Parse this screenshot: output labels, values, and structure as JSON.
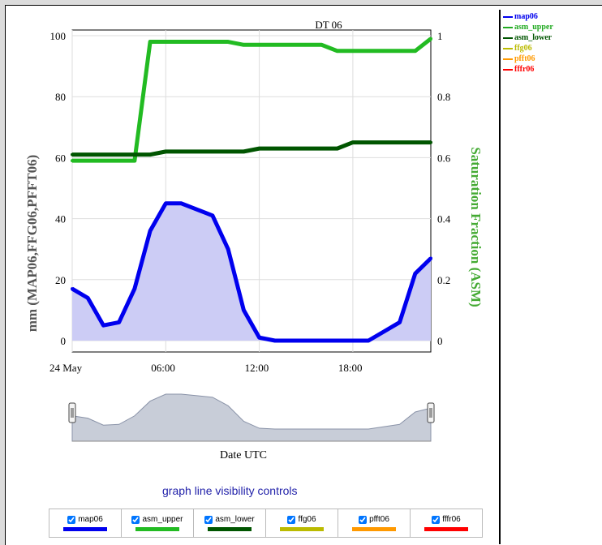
{
  "legend_items": [
    {
      "name": "map06",
      "color": "#0000ee"
    },
    {
      "name": "asm_upper",
      "color": "#22aa22"
    },
    {
      "name": "asm_lower",
      "color": "#005500"
    },
    {
      "name": "ffg06",
      "color": "#bbbb00"
    },
    {
      "name": "pfft06",
      "color": "#ff9900"
    },
    {
      "name": "fffr06",
      "color": "#ff0000"
    }
  ],
  "navigator_label": "Date UTC",
  "controls_title": "graph line visibility controls",
  "controls": [
    {
      "label": "map06",
      "color": "#0000ee",
      "checked": true
    },
    {
      "label": "asm_upper",
      "color": "#22bb22",
      "checked": true
    },
    {
      "label": "asm_lower",
      "color": "#005500",
      "checked": true
    },
    {
      "label": "ffg06",
      "color": "#bbbb00",
      "checked": true
    },
    {
      "label": "pfft06",
      "color": "#ff9900",
      "checked": true
    },
    {
      "label": "fffr06",
      "color": "#ff0000",
      "checked": true
    }
  ],
  "chart_data": {
    "type": "line",
    "title": "DT 06",
    "ylabel_left": "mm (MAP06,FFG06,PFFT06)",
    "ylabel_right": "Saturation Fraction (ASM)",
    "x_ticks": [
      "24 May",
      "06:00",
      "12:00",
      "18:00"
    ],
    "y_left_ticks": [
      "0",
      "20",
      "40",
      "60",
      "80",
      "100"
    ],
    "y_right_ticks": [
      "0",
      "0.2",
      "0.4",
      "0.6",
      "0.8",
      "1"
    ],
    "ylim_left": [
      0,
      100
    ],
    "ylim_right": [
      0,
      1
    ],
    "x_hours": [
      0,
      1,
      2,
      3,
      4,
      5,
      6,
      7,
      8,
      9,
      10,
      11,
      12,
      13,
      14,
      15,
      16,
      17,
      18,
      19,
      20,
      21,
      22,
      23
    ],
    "series": [
      {
        "name": "map06",
        "axis": "left",
        "color": "#0000ee",
        "fill": "#ccccf5",
        "values": [
          17,
          14,
          5,
          6,
          17,
          36,
          45,
          45,
          43,
          41,
          30,
          10,
          1,
          0,
          0,
          0,
          0,
          0,
          0,
          0,
          3,
          6,
          22,
          27
        ]
      },
      {
        "name": "asm_upper",
        "axis": "right",
        "color": "#22bb22",
        "values": [
          0.59,
          0.59,
          0.59,
          0.59,
          0.59,
          0.98,
          0.98,
          0.98,
          0.98,
          0.98,
          0.98,
          0.97,
          0.97,
          0.97,
          0.97,
          0.97,
          0.97,
          0.95,
          0.95,
          0.95,
          0.95,
          0.95,
          0.95,
          0.99
        ]
      },
      {
        "name": "asm_lower",
        "axis": "right",
        "color": "#005500",
        "values": [
          0.61,
          0.61,
          0.61,
          0.61,
          0.61,
          0.61,
          0.62,
          0.62,
          0.62,
          0.62,
          0.62,
          0.62,
          0.63,
          0.63,
          0.63,
          0.63,
          0.63,
          0.63,
          0.65,
          0.65,
          0.65,
          0.65,
          0.65,
          0.65
        ]
      }
    ]
  }
}
